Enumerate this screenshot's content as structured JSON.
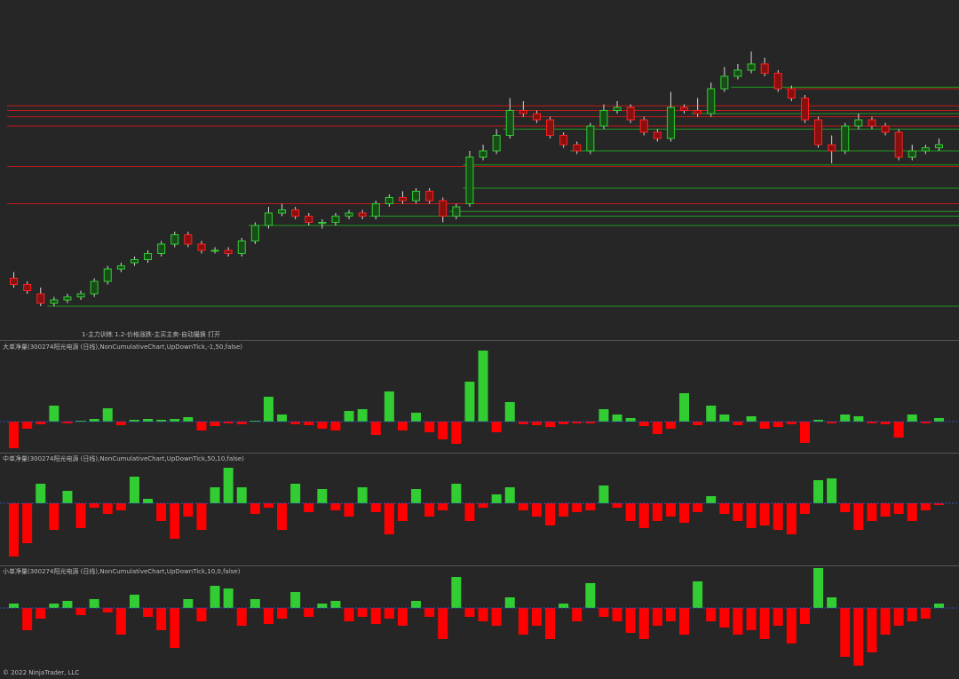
{
  "chart_data": [
    {
      "type": "candlestick",
      "title": "1-主力训练 1.2-价格涨跌-主买主卖-自动撮换 打开",
      "open": [
        19,
        17,
        14,
        11,
        12,
        13,
        14,
        18,
        22,
        24,
        25,
        27,
        30,
        33,
        30,
        28,
        28,
        27,
        31,
        36,
        40,
        41,
        39,
        37,
        37,
        39,
        40,
        39,
        43,
        45,
        44,
        47,
        44,
        39,
        43,
        58,
        60,
        65,
        73,
        72,
        70,
        65,
        62,
        60,
        68,
        73,
        74,
        70,
        66,
        64,
        74,
        73,
        72,
        80,
        84,
        86,
        88,
        85,
        80,
        77,
        70,
        62,
        60,
        68,
        70,
        68,
        66,
        58,
        60,
        61
      ],
      "high": [
        21,
        18,
        16,
        13,
        14,
        15,
        19,
        23,
        24,
        26,
        28,
        31,
        34,
        34,
        31,
        29,
        29,
        32,
        37,
        42,
        43,
        42,
        40,
        38,
        40,
        41,
        41,
        44,
        46,
        47,
        48,
        48,
        45,
        43,
        60,
        62,
        67,
        77,
        76,
        73,
        71,
        66,
        63,
        69,
        75,
        76,
        75,
        71,
        67,
        79,
        75,
        77,
        82,
        87,
        88,
        92,
        90,
        86,
        81,
        78,
        71,
        65,
        69,
        72,
        71,
        69,
        67,
        62,
        62,
        64
      ],
      "low": [
        16,
        14,
        10,
        10,
        11,
        12,
        13,
        17,
        21,
        23,
        24,
        26,
        29,
        29,
        27,
        27,
        26,
        26,
        30,
        35,
        39,
        38,
        36,
        35,
        36,
        38,
        38,
        38,
        42,
        43,
        43,
        43,
        37,
        38,
        42,
        57,
        59,
        64,
        71,
        69,
        64,
        61,
        59,
        59,
        67,
        72,
        69,
        65,
        63,
        63,
        72,
        71,
        71,
        79,
        83,
        85,
        84,
        79,
        76,
        69,
        61,
        56,
        59,
        67,
        67,
        65,
        57,
        57,
        59,
        60
      ],
      "close": [
        17,
        15,
        11,
        12,
        13,
        14,
        18,
        22,
        23,
        25,
        27,
        30,
        33,
        30,
        28,
        28,
        27,
        31,
        36,
        40,
        41,
        39,
        37,
        37,
        39,
        40,
        39,
        43,
        45,
        44,
        47,
        44,
        39,
        42,
        58,
        60,
        65,
        73,
        72,
        70,
        65,
        62,
        60,
        68,
        73,
        74,
        70,
        66,
        64,
        74,
        73,
        72,
        80,
        84,
        86,
        88,
        85,
        80,
        77,
        70,
        62,
        60,
        68,
        70,
        68,
        66,
        58,
        60,
        61,
        62
      ],
      "ylim": [
        0,
        100
      ],
      "up_color": "#32cd32",
      "down_color": "#ff2020",
      "levels": [
        {
          "value": 71,
          "from": 0,
          "color": "#c01818"
        },
        {
          "value": 73,
          "from": 0,
          "color": "#c01818"
        },
        {
          "value": 74.5,
          "from": 0,
          "color": "#c01818"
        },
        {
          "value": 68,
          "from": 0,
          "color": "#c01818"
        },
        {
          "value": 55,
          "from": 0,
          "color": "#c01818"
        },
        {
          "value": 43,
          "from": 0,
          "color": "#c01818"
        },
        {
          "value": 80,
          "from": 58,
          "color": "#c01818"
        },
        {
          "value": 10,
          "from": 3,
          "color": "#1f9a1f"
        },
        {
          "value": 36,
          "from": 18,
          "color": "#1f9a1f"
        },
        {
          "value": 39,
          "from": 27,
          "color": "#1f9a1f"
        },
        {
          "value": 40.5,
          "from": 33,
          "color": "#1f9a1f"
        },
        {
          "value": 48,
          "from": 34,
          "color": "#1f9a1f"
        },
        {
          "value": 55.5,
          "from": 34,
          "color": "#1f9a1f"
        },
        {
          "value": 60,
          "from": 42,
          "color": "#1f9a1f"
        },
        {
          "value": 67,
          "from": 37,
          "color": "#1f9a1f"
        },
        {
          "value": 72,
          "from": 51,
          "color": "#1f9a1f"
        },
        {
          "value": 80.5,
          "from": 54,
          "color": "#1f9a1f"
        }
      ]
    },
    {
      "type": "bar",
      "title": "大单净量(300274阳光电源 (日线),NonCumulativeChart,UpDownTick,-1,50,false)",
      "values": [
        -30,
        -8,
        -3,
        18,
        -2,
        1,
        3,
        15,
        -4,
        2,
        3,
        2,
        3,
        5,
        -10,
        -5,
        -2,
        -3,
        1,
        28,
        8,
        -3,
        -4,
        -8,
        -10,
        12,
        14,
        -15,
        34,
        -10,
        10,
        -12,
        -20,
        -25,
        45,
        80,
        -12,
        22,
        -3,
        -4,
        -6,
        -3,
        -2,
        -2,
        14,
        8,
        4,
        -5,
        -14,
        -8,
        32,
        -4,
        18,
        8,
        -4,
        6,
        -8,
        -6,
        -3,
        -24,
        2,
        -2,
        8,
        6,
        -2,
        -3,
        -18,
        8,
        -2,
        4
      ],
      "ylim": [
        -35,
        90
      ],
      "up_color": "#32cd32",
      "down_color": "#ff0000"
    },
    {
      "type": "bar",
      "title": "中单净量(300274阳光电源 (日线),NonCumulativeChart,UpDownTick,50,10,false)",
      "values": [
        -60,
        -45,
        22,
        -30,
        14,
        -28,
        -5,
        -12,
        -8,
        30,
        5,
        -20,
        -40,
        -15,
        -30,
        18,
        40,
        18,
        -12,
        -5,
        -30,
        22,
        -10,
        16,
        -8,
        -15,
        18,
        -10,
        -35,
        -20,
        16,
        -15,
        -8,
        22,
        -20,
        -5,
        10,
        18,
        -8,
        -15,
        -25,
        -15,
        -10,
        -8,
        20,
        -5,
        -20,
        -28,
        -20,
        -15,
        -22,
        -10,
        8,
        -12,
        -20,
        -28,
        -25,
        -30,
        -35,
        -12,
        26,
        28,
        -10,
        -30,
        -20,
        -15,
        -12,
        -20,
        -8,
        -2
      ],
      "ylim": [
        -70,
        55
      ],
      "up_color": "#32cd32",
      "down_color": "#ff0000"
    },
    {
      "type": "bar",
      "title": "小单净量(300274阳光电源 (日线),NonCumulativeChart,UpDownTick,10,0,false)",
      "values": [
        5,
        -25,
        -12,
        5,
        8,
        -8,
        10,
        -5,
        -30,
        15,
        -10,
        -25,
        -45,
        10,
        -15,
        25,
        22,
        -20,
        10,
        -18,
        -12,
        18,
        -10,
        5,
        8,
        -15,
        -10,
        -18,
        -12,
        -20,
        8,
        -10,
        -35,
        35,
        -10,
        -15,
        -20,
        12,
        -30,
        -20,
        -35,
        5,
        -15,
        28,
        -10,
        -15,
        -28,
        -35,
        -20,
        -15,
        -30,
        30,
        -15,
        -22,
        -30,
        -25,
        -35,
        -20,
        -40,
        -18,
        45,
        12,
        -55,
        -65,
        -50,
        -30,
        -20,
        -15,
        -12,
        5
      ],
      "ylim": [
        -80,
        45
      ],
      "up_color": "#32cd32",
      "down_color": "#ff0000"
    }
  ],
  "footer": "© 2022 NinjaTrader, LLC"
}
